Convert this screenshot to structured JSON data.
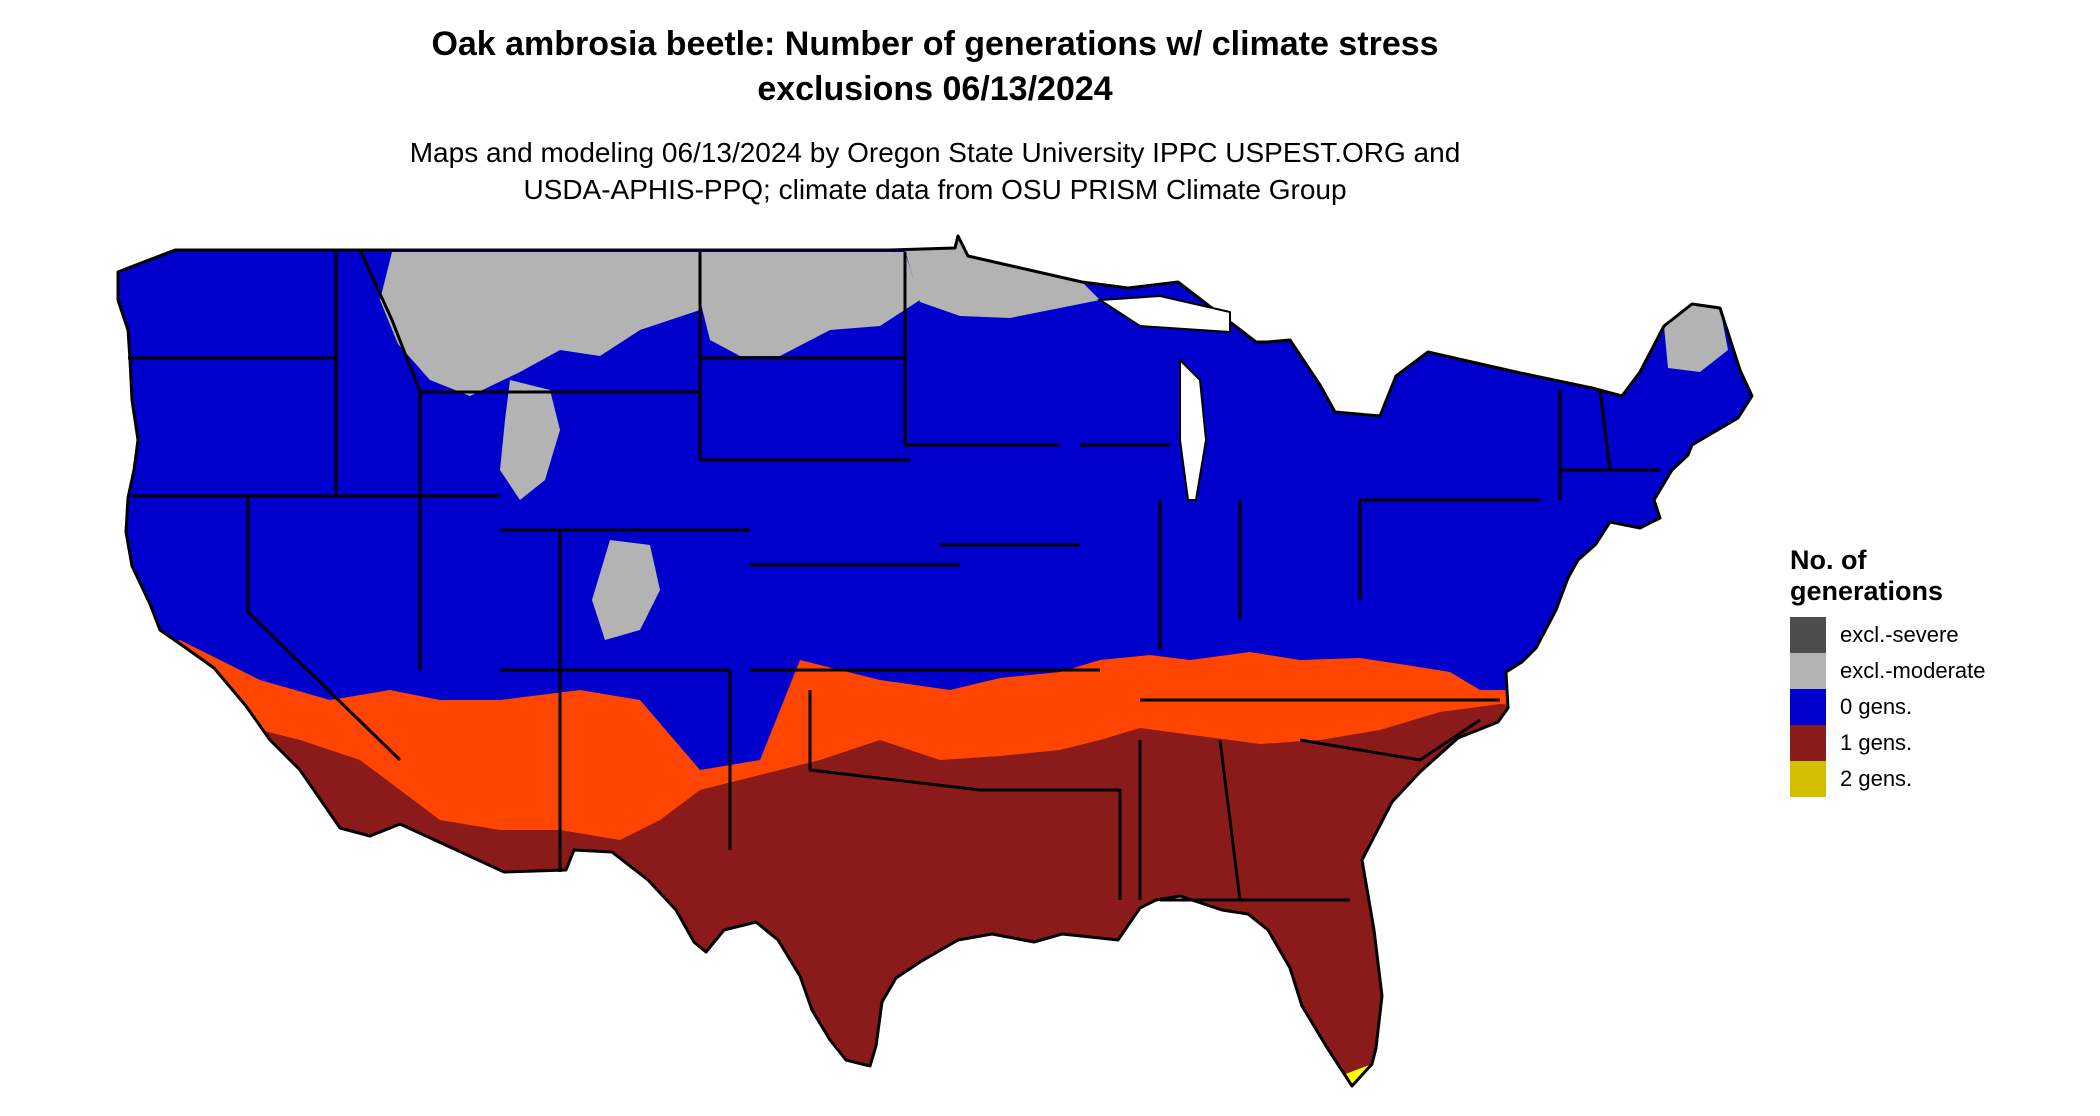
{
  "title": {
    "line1": "Oak ambrosia beetle: Number of generations w/ climate stress",
    "line2": "exclusions 06/13/2024"
  },
  "subtitle": {
    "line1": "Maps and modeling 06/13/2024 by Oregon State University IPPC USPEST.ORG and",
    "line2": "USDA-APHIS-PPQ; climate data from OSU PRISM Climate Group"
  },
  "legend": {
    "title_line1": "No. of",
    "title_line2": "generations",
    "items": [
      {
        "label": "excl.-severe",
        "color": "#4d4d4d"
      },
      {
        "label": "excl.-moderate",
        "color": "#b3b3b3"
      },
      {
        "label": "0 gens.",
        "color": "#0000cc"
      },
      {
        "label": "1 gens.",
        "color": "#8b1a1a"
      },
      {
        "label": "2 gens.",
        "color": "#d4bf00"
      }
    ]
  },
  "map_colors": {
    "zero_gens": "#0000cc",
    "one_gen": "#8b1a1a",
    "one_gen_light": "#ff4500",
    "excl_moderate": "#b3b3b3",
    "two_gens": "#ffff00",
    "state_borders": "#000000"
  }
}
